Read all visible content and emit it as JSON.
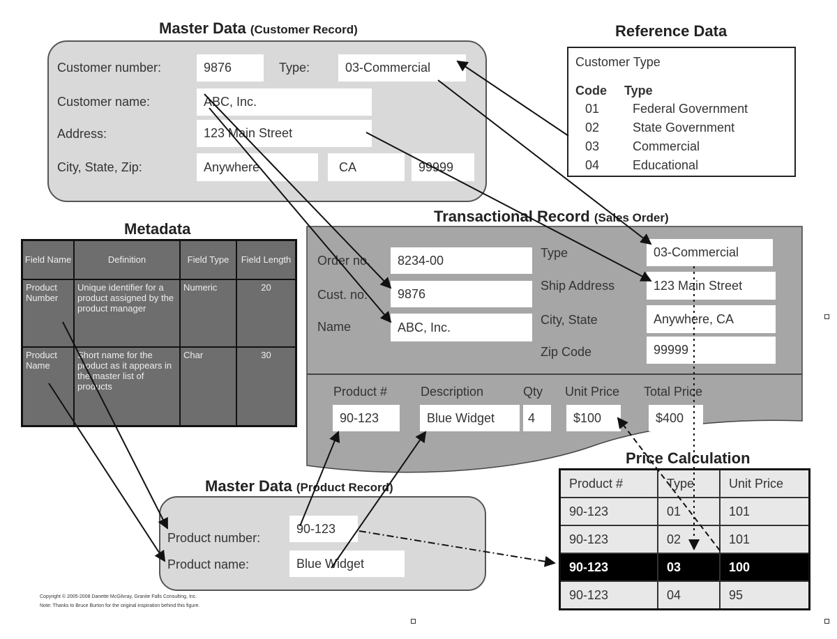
{
  "customer_record": {
    "title": "Master Data",
    "subtitle": "(Customer Record)",
    "fields": {
      "number_label": "Customer number:",
      "number_value": "9876",
      "type_label": "Type:",
      "type_value": "03-Commercial",
      "name_label": "Customer name:",
      "name_value": "ABC, Inc.",
      "address_label": "Address:",
      "address_value": "123 Main Street",
      "csz_label": "City, State, Zip:",
      "city_value": "Anywhere",
      "state_value": "CA",
      "zip_value": "99999"
    }
  },
  "reference_data": {
    "title": "Reference Data",
    "heading": "Customer Type",
    "col_code": "Code",
    "col_type": "Type",
    "rows": [
      {
        "code": "01",
        "type": "Federal Government"
      },
      {
        "code": "02",
        "type": "State Government"
      },
      {
        "code": "03",
        "type": "Commercial"
      },
      {
        "code": "04",
        "type": "Educational"
      }
    ]
  },
  "metadata": {
    "title": "Metadata",
    "headers": [
      "Field Name",
      "Definition",
      "Field Type",
      "Field Length"
    ],
    "rows": [
      [
        "Product Number",
        "Unique identifier for a product assigned by the product manager",
        "Numeric",
        "20"
      ],
      [
        "Product Name",
        "Short name for the product as it appears in the master list of products",
        "Char",
        "30"
      ]
    ]
  },
  "sales_order": {
    "title": "Transactional Record",
    "subtitle": "(Sales Order)",
    "order_label": "Order no.",
    "order_value": "8234-00",
    "cust_label": "Cust. no.",
    "cust_value": "9876",
    "name_label": "Name",
    "name_value": "ABC, Inc.",
    "type_label": "Type",
    "type_value": "03-Commercial",
    "ship_label": "Ship Address",
    "ship_value": "123 Main Street",
    "city_label": "City, State",
    "city_value": "Anywhere, CA",
    "zip_label": "Zip Code",
    "zip_value": "99999",
    "line_headers": [
      "Product #",
      "Description",
      "Qty",
      "Unit Price",
      "Total Price"
    ],
    "line_values": [
      "90-123",
      "Blue Widget",
      "4",
      "$100",
      "$400"
    ]
  },
  "price_calculation": {
    "title": "Price Calculation",
    "headers": [
      "Product #",
      "Type",
      "Unit Price"
    ],
    "rows": [
      [
        "90-123",
        "01",
        "101"
      ],
      [
        "90-123",
        "02",
        "101"
      ],
      [
        "90-123",
        "03",
        "100"
      ],
      [
        "90-123",
        "04",
        "95"
      ]
    ],
    "highlighted_row": 2
  },
  "product_record": {
    "title": "Master Data",
    "subtitle": "(Product Record)",
    "number_label": "Product number:",
    "number_value": "90-123",
    "name_label": "Product name:",
    "name_value": "Blue Widget"
  },
  "footer": {
    "copyright": "Copyright © 2005-2008 Danette McGilvray, Granite Falls Consulting, Inc.",
    "note": "Note:  Thanks to Bruce Burton for the original inspiration behind this figure."
  }
}
